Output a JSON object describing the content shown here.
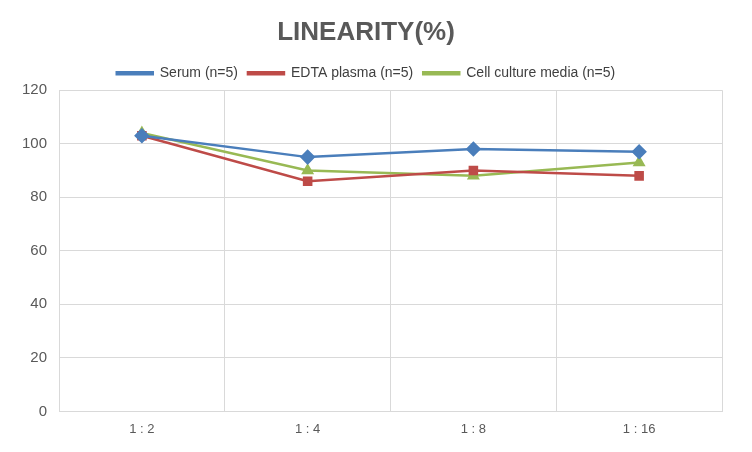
{
  "chart_data": {
    "type": "line",
    "title": "LINEARITY(%)",
    "categories": [
      "1 : 2",
      "1 : 4",
      "1 : 8",
      "1 : 16"
    ],
    "series": [
      {
        "name": "Serum (n=5)",
        "color": "#4a7ebb",
        "marker": "diamond",
        "values": [
          103,
          95,
          98,
          97
        ]
      },
      {
        "name": "EDTA plasma (n=5)",
        "color": "#be4b48",
        "marker": "square",
        "values": [
          103,
          86,
          90,
          88
        ]
      },
      {
        "name": "Cell culture media (n=5)",
        "color": "#98b954",
        "marker": "triangle",
        "values": [
          104,
          90,
          88,
          93
        ]
      }
    ],
    "ylim": [
      0,
      120
    ],
    "yticks": [
      0,
      20,
      40,
      60,
      80,
      100,
      120
    ],
    "grid": true,
    "legend": "top"
  }
}
